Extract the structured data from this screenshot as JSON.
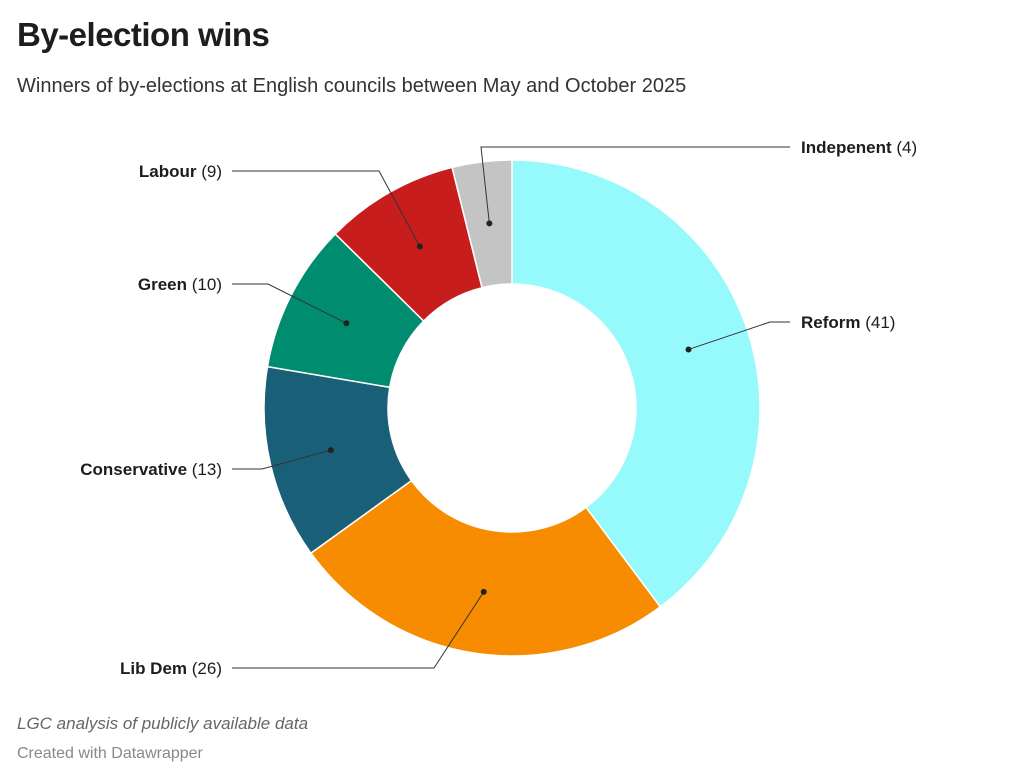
{
  "title": "By-election wins",
  "subtitle": "Winners of by-elections at English councils between May and October 2025",
  "source": "LGC analysis of publicly available data",
  "credit": "Created with Datawrapper",
  "chart_data": {
    "type": "pie",
    "donut": true,
    "title": "By-election wins",
    "subtitle": "Winners of by-elections at English councils between May and October 2025",
    "start": "top, clockwise",
    "slices": [
      {
        "name": "Reform",
        "value": 41,
        "color": "#96f9fc"
      },
      {
        "name": "Lib Dem",
        "value": 26,
        "color": "#f78c00"
      },
      {
        "name": "Conservative",
        "value": 13,
        "color": "#1a5f78"
      },
      {
        "name": "Green",
        "value": 10,
        "color": "#008c6e"
      },
      {
        "name": "Labour",
        "value": 9,
        "color": "#c71e1d"
      },
      {
        "name": "Indepenent",
        "value": 4,
        "color": "#c4c4c4"
      }
    ]
  }
}
